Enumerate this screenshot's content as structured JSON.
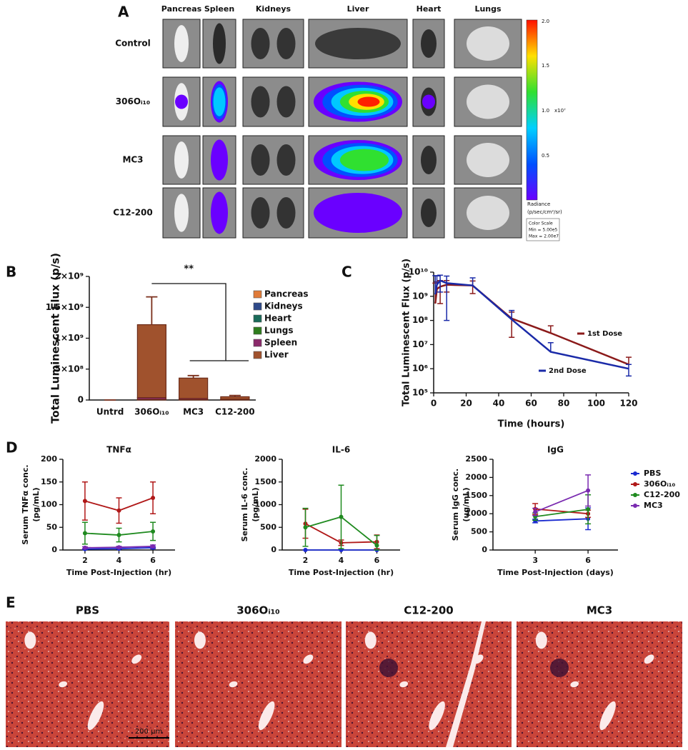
{
  "panel_labels": [
    "A",
    "B",
    "C",
    "D",
    "E"
  ],
  "imaging": {
    "organs": [
      "Pancreas",
      "Spleen",
      "Kidneys",
      "Liver",
      "Heart",
      "Lungs"
    ],
    "groups": [
      "Control",
      "306Oᵢ₁₀",
      "MC3",
      "C12-200"
    ],
    "color_scale": {
      "ticks": [
        "2.0",
        "1.5",
        "1.0",
        "0.5"
      ],
      "multiplier": "x10⁷",
      "unit_label": [
        "Radiance",
        "(p/sec/cm²/sr)"
      ],
      "info": [
        "Color Scale",
        "Min = 5.00e5",
        "Max = 2.00e7"
      ]
    }
  },
  "chart_data": [
    {
      "type": "bar",
      "stacked": true,
      "y_label": "Total Luminescent Flux (p/s)",
      "annotation": "**",
      "categories": [
        "Untrd",
        "306Oᵢ₁₀",
        "MC3",
        "C12-200"
      ],
      "ylim": [
        0,
        2000000000
      ],
      "yticks": [
        0,
        {
          "value": 500000000,
          "label": "5×10⁸"
        },
        {
          "value": 1000000000,
          "label": "1×10⁹"
        },
        {
          "value": 1500000000,
          "label": "1.5×10⁹"
        },
        {
          "value": 2000000000,
          "label": "2×10⁹"
        }
      ],
      "series": [
        {
          "name": "Pancreas",
          "color": "#e07b39",
          "values": [
            0,
            2000000,
            1000000,
            1000000
          ]
        },
        {
          "name": "Kidneys",
          "color": "#2e4a8a",
          "values": [
            0,
            3000000,
            2000000,
            1000000
          ]
        },
        {
          "name": "Heart",
          "color": "#1a6b5a",
          "values": [
            0,
            2000000,
            1000000,
            0
          ]
        },
        {
          "name": "Lungs",
          "color": "#2e7d1e",
          "values": [
            0,
            2000000,
            1000000,
            1000000
          ]
        },
        {
          "name": "Spleen",
          "color": "#8b2a6b",
          "values": [
            0,
            30000000,
            20000000,
            10000000
          ]
        },
        {
          "name": "Liver",
          "color": "#a0522d",
          "values": [
            0,
            1180000000,
            330000000,
            40000000
          ],
          "errors": [
            0,
            450000000,
            40000000,
            20000000
          ]
        }
      ]
    },
    {
      "type": "line",
      "log_y": true,
      "x_label": "Time (hours)",
      "y_label": "Total Luminescent Flux (p/s)",
      "x": [
        1,
        2,
        4,
        8,
        24,
        48,
        72,
        120
      ],
      "xlim": [
        0,
        120
      ],
      "xticks": [
        0,
        20,
        40,
        60,
        80,
        100,
        120
      ],
      "ylim": [
        100000,
        10000000000
      ],
      "yticks": [
        {
          "value": 100000,
          "label": "10⁵"
        },
        {
          "value": 1000000,
          "label": "10⁶"
        },
        {
          "value": 10000000,
          "label": "10⁷"
        },
        {
          "value": 100000000,
          "label": "10⁸"
        },
        {
          "value": 1000000000,
          "label": "10⁹"
        },
        {
          "value": 10000000000,
          "label": "10¹⁰"
        }
      ],
      "series": [
        {
          "name": "1st Dose",
          "color": "#8b1a1a",
          "values": [
            500000000,
            2000000000,
            2500000000,
            3000000000,
            2800000000,
            120000000,
            30000000,
            1500000
          ],
          "errors": [
            3000000000,
            2000000000,
            2000000000,
            1500000000,
            1500000000,
            100000000,
            30000000,
            1500000
          ]
        },
        {
          "name": "2nd Dose",
          "color": "#1a2aa8",
          "values": [
            1200000000,
            3000000000,
            4500000000,
            3500000000,
            2800000000,
            110000000,
            5000000,
            1000000
          ],
          "errors": [
            6000000000,
            4000000000,
            3000000000,
            3400000000,
            3000000000,
            150000000,
            7000000,
            500000
          ]
        }
      ]
    },
    {
      "type": "line",
      "title": "TNFα",
      "x_label": "Time Post-Injection (hr)",
      "y_label": [
        "Serum TNFα conc.",
        "(pg/mL)"
      ],
      "x": [
        2,
        4,
        6
      ],
      "xlim": [
        0.7,
        7.3
      ],
      "xticks": [
        2,
        4,
        6
      ],
      "ylim": [
        0,
        200
      ],
      "yticks": [
        0,
        50,
        100,
        150,
        200
      ],
      "series": [
        {
          "color": "#1a2ad0",
          "values": [
            2,
            3,
            5
          ],
          "errors": [
            1,
            1,
            2
          ]
        },
        {
          "color": "#b01818",
          "values": [
            108,
            87,
            115
          ],
          "errors": [
            42,
            28,
            35
          ]
        },
        {
          "color": "#1f8a1f",
          "values": [
            37,
            33,
            41
          ],
          "errors": [
            24,
            15,
            20
          ]
        },
        {
          "color": "#7a2ab0",
          "values": [
            5,
            6,
            8
          ],
          "errors": [
            2,
            2,
            3
          ]
        }
      ]
    },
    {
      "type": "line",
      "title": "IL-6",
      "x_label": "Time Post-Injection (hr)",
      "y_label": [
        "Serum IL-6 conc.",
        "(pg/mL)"
      ],
      "x": [
        2,
        4,
        6
      ],
      "xlim": [
        0.7,
        7.3
      ],
      "xticks": [
        2,
        4,
        6
      ],
      "ylim": [
        0,
        2000
      ],
      "yticks": [
        0,
        500,
        1000,
        1500,
        2000
      ],
      "series": [
        {
          "color": "#1a2ad0",
          "values": [
            0,
            0,
            0
          ],
          "errors": [
            0,
            0,
            0
          ]
        },
        {
          "color": "#b01818",
          "values": [
            580,
            160,
            180
          ],
          "errors": [
            320,
            60,
            150
          ]
        },
        {
          "color": "#1f8a1f",
          "values": [
            500,
            730,
            100
          ],
          "errors": [
            420,
            700,
            220
          ]
        }
      ]
    },
    {
      "type": "line",
      "title": "IgG",
      "x_label": "Time Post-Injection (days)",
      "y_label": [
        "Serum IgG conc.",
        "(ug/mL)"
      ],
      "legend": "right",
      "x": [
        3,
        6
      ],
      "xlim": [
        0.6,
        7.7
      ],
      "xticks": [
        3,
        6
      ],
      "ylim": [
        0,
        2500
      ],
      "yticks": [
        0,
        500,
        1000,
        1500,
        2000,
        2500
      ],
      "series": [
        {
          "name": "PBS",
          "color": "#1a2ad0",
          "values": [
            800,
            860
          ],
          "errors": [
            50,
            300
          ]
        },
        {
          "name": "306Oᵢ₁₀",
          "color": "#b01818",
          "values": [
            1130,
            1000
          ],
          "errors": [
            150,
            100
          ]
        },
        {
          "name": "C12-200",
          "color": "#1f8a1f",
          "values": [
            920,
            1120
          ],
          "errors": [
            100,
            400
          ]
        },
        {
          "name": "MC3",
          "color": "#7a2ab0",
          "values": [
            1050,
            1640
          ],
          "errors": [
            100,
            430
          ]
        }
      ]
    }
  ],
  "histology": {
    "groups": [
      "PBS",
      "306Oᵢ₁₀",
      "C12-200",
      "MC3"
    ],
    "scale_bar": "200 µm"
  }
}
